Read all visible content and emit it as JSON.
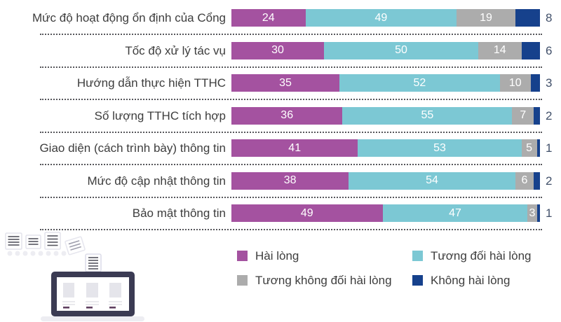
{
  "chart_data": {
    "type": "bar",
    "variant": "horizontal-stacked",
    "title": "",
    "xlabel": "",
    "ylabel": "",
    "xlim": [
      0,
      100
    ],
    "grid": false,
    "legend_position": "bottom-right 2x2",
    "categories": [
      "Mức độ hoạt động ổn định của Cổng",
      "Tốc độ xử lý tác vụ",
      "Hướng dẫn thực hiện TTHC",
      "Số lượng TTHC tích hợp",
      "Giao diện (cách trình bày) thông tin",
      "Mức độ cập nhật thông tin",
      "Bảo mật thông tin"
    ],
    "series": [
      {
        "name": "Hài lòng",
        "color": "#a452a0",
        "label_style": "inside-white",
        "values": [
          24,
          30,
          35,
          36,
          41,
          38,
          49
        ]
      },
      {
        "name": "Tương đối hài lòng",
        "color": "#7cc8d4",
        "label_style": "inside-white",
        "values": [
          49,
          50,
          52,
          55,
          53,
          54,
          47
        ]
      },
      {
        "name": "Tương không đối hài lòng",
        "color": "#acacac",
        "label_style": "inside-white",
        "values": [
          19,
          14,
          10,
          7,
          5,
          6,
          3
        ]
      },
      {
        "name": "Không hài lòng",
        "color": "#16418c",
        "label_style": "outside-right",
        "values": [
          8,
          6,
          3,
          2,
          1,
          2,
          1
        ]
      }
    ]
  },
  "illustration": {
    "name": "documents-flowing-into-portal-monitor",
    "monitor_frame_color": "#3b3b53"
  }
}
